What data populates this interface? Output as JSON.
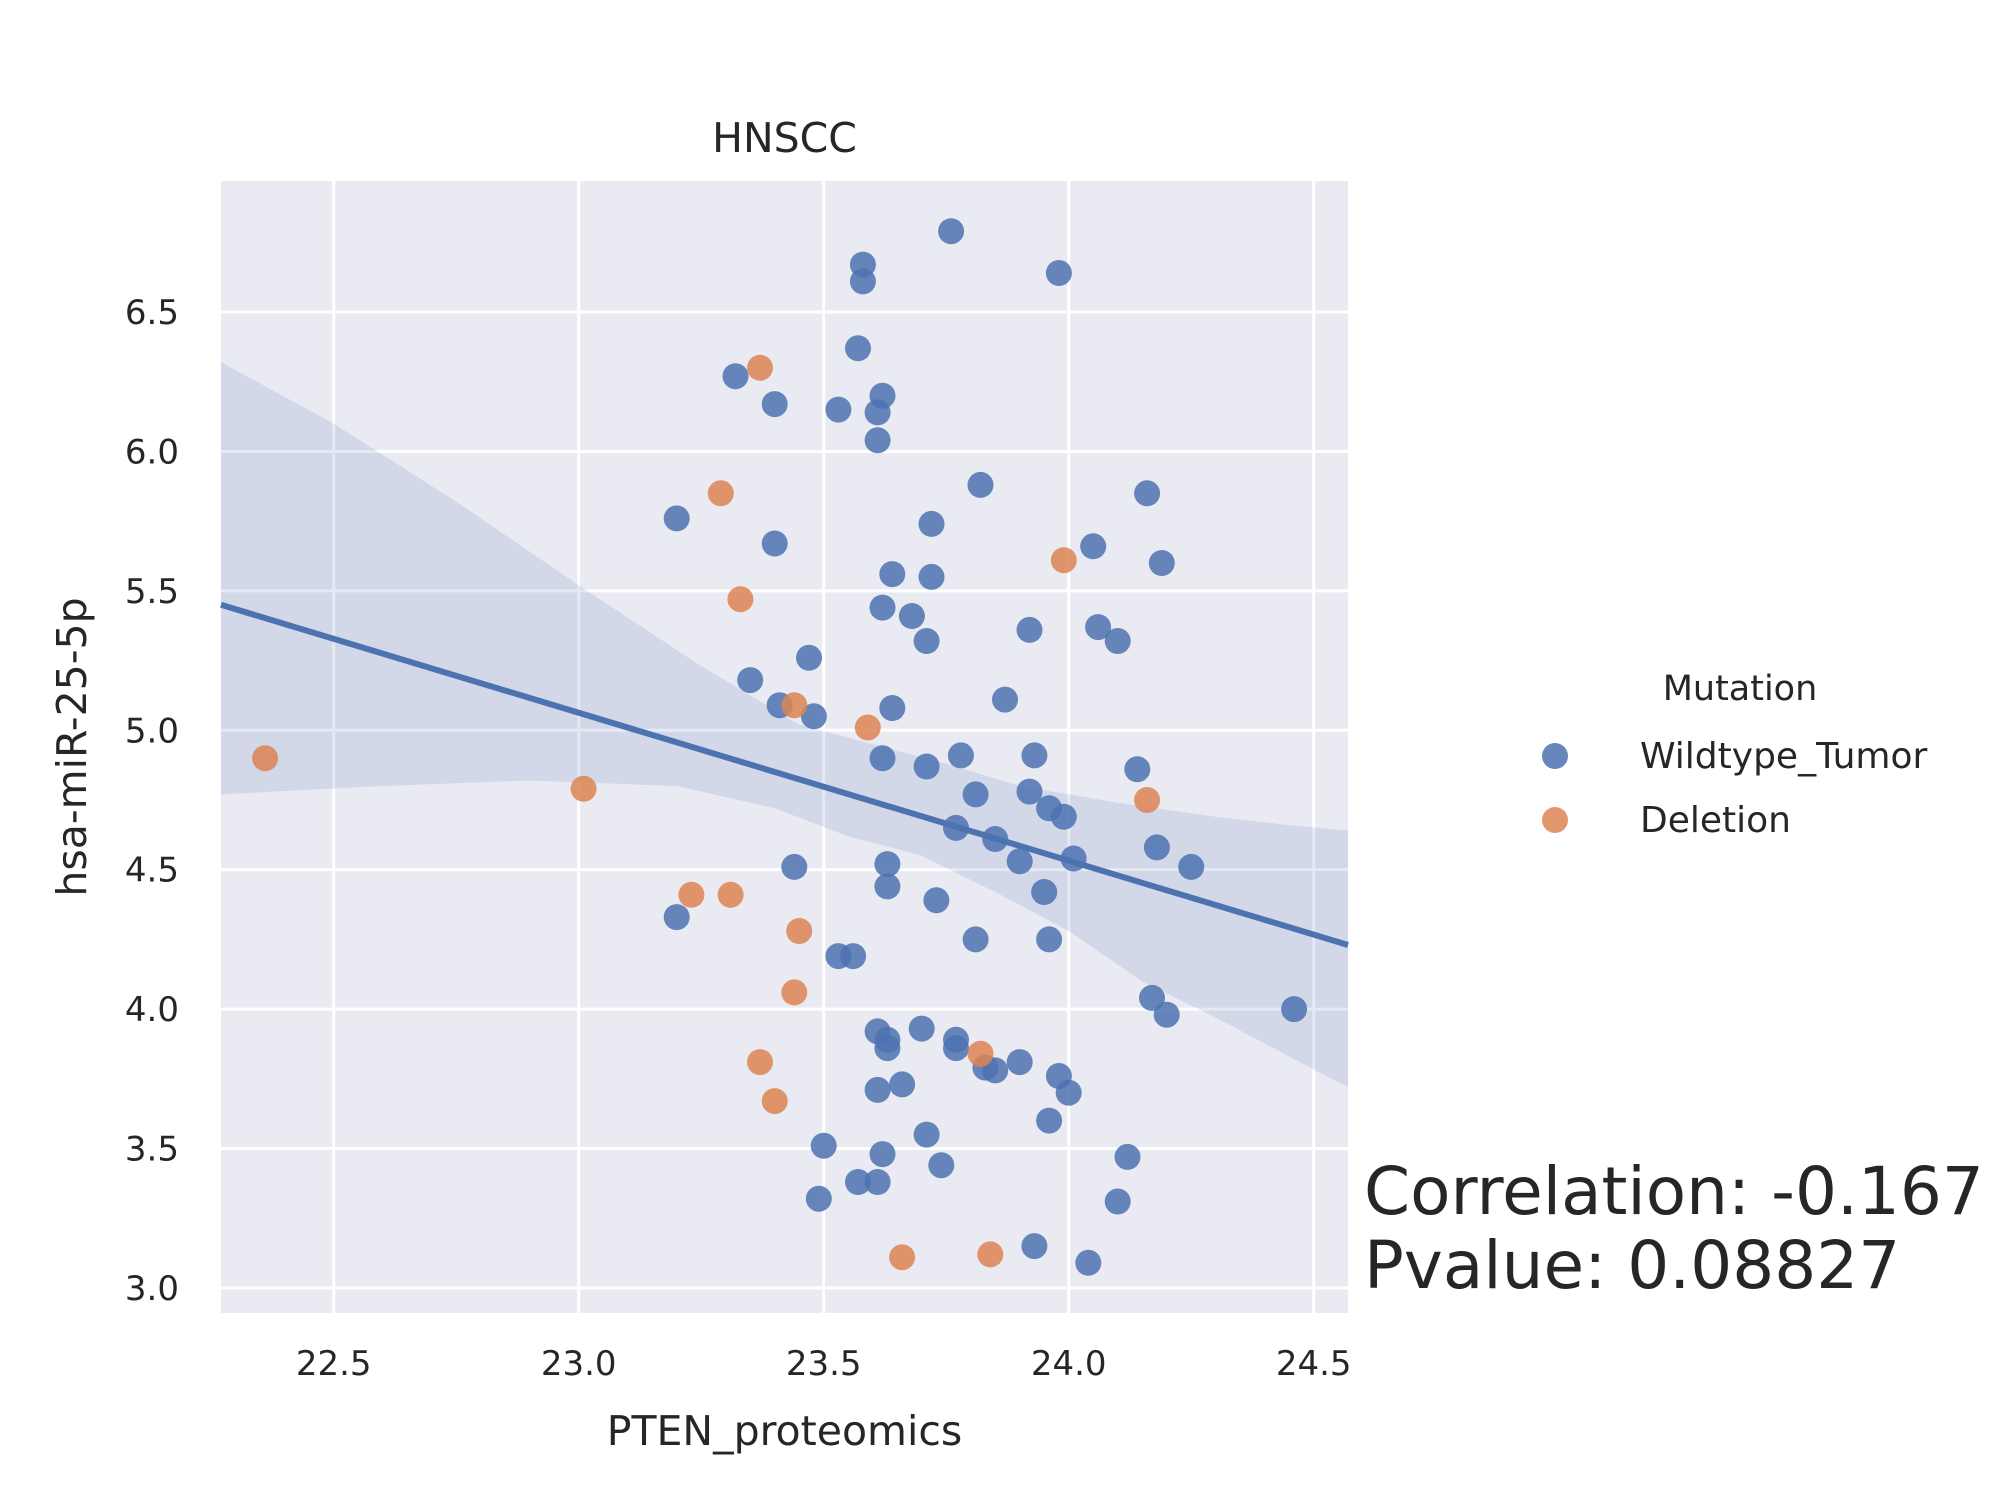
{
  "chart_data": {
    "type": "scatter",
    "title": "HNSCC",
    "xlabel": "PTEN_proteomics",
    "ylabel": "hsa-miR-25-5p",
    "xlim": [
      22.27,
      24.57
    ],
    "ylim": [
      2.91,
      6.97
    ],
    "xticks": [
      "22.5",
      "23.0",
      "23.5",
      "24.0",
      "24.5"
    ],
    "yticks": [
      "3.0",
      "3.5",
      "4.0",
      "4.5",
      "5.0",
      "5.5",
      "6.0",
      "6.5"
    ],
    "grid": true,
    "legend": {
      "title": "Mutation",
      "position": "right"
    },
    "series": [
      {
        "name": "Wildtype_Tumor",
        "color": "#4c72b0",
        "points": [
          [
            23.76,
            6.79
          ],
          [
            23.58,
            6.67
          ],
          [
            23.58,
            6.61
          ],
          [
            23.98,
            6.64
          ],
          [
            23.57,
            6.37
          ],
          [
            23.32,
            6.27
          ],
          [
            23.62,
            6.2
          ],
          [
            23.4,
            6.17
          ],
          [
            23.53,
            6.15
          ],
          [
            23.61,
            6.14
          ],
          [
            23.61,
            6.04
          ],
          [
            23.82,
            5.88
          ],
          [
            24.16,
            5.85
          ],
          [
            23.2,
            5.76
          ],
          [
            23.72,
            5.74
          ],
          [
            23.4,
            5.67
          ],
          [
            24.05,
            5.66
          ],
          [
            24.19,
            5.6
          ],
          [
            23.64,
            5.56
          ],
          [
            23.72,
            5.55
          ],
          [
            23.62,
            5.44
          ],
          [
            23.68,
            5.41
          ],
          [
            23.92,
            5.36
          ],
          [
            24.06,
            5.37
          ],
          [
            23.71,
            5.32
          ],
          [
            24.1,
            5.32
          ],
          [
            23.47,
            5.26
          ],
          [
            23.35,
            5.18
          ],
          [
            23.87,
            5.11
          ],
          [
            23.41,
            5.09
          ],
          [
            23.48,
            5.05
          ],
          [
            23.64,
            5.08
          ],
          [
            23.78,
            4.91
          ],
          [
            23.93,
            4.91
          ],
          [
            23.62,
            4.9
          ],
          [
            23.71,
            4.87
          ],
          [
            24.14,
            4.86
          ],
          [
            23.81,
            4.77
          ],
          [
            23.92,
            4.78
          ],
          [
            23.96,
            4.72
          ],
          [
            23.99,
            4.69
          ],
          [
            23.77,
            4.65
          ],
          [
            23.85,
            4.61
          ],
          [
            24.18,
            4.58
          ],
          [
            24.01,
            4.54
          ],
          [
            23.9,
            4.53
          ],
          [
            23.63,
            4.52
          ],
          [
            24.25,
            4.51
          ],
          [
            23.44,
            4.51
          ],
          [
            23.63,
            4.44
          ],
          [
            23.95,
            4.42
          ],
          [
            23.73,
            4.39
          ],
          [
            23.2,
            4.33
          ],
          [
            23.81,
            4.25
          ],
          [
            23.96,
            4.25
          ],
          [
            23.53,
            4.19
          ],
          [
            23.56,
            4.19
          ],
          [
            24.46,
            4.0
          ],
          [
            24.17,
            4.04
          ],
          [
            24.2,
            3.98
          ],
          [
            23.61,
            3.92
          ],
          [
            23.7,
            3.93
          ],
          [
            23.63,
            3.89
          ],
          [
            23.77,
            3.89
          ],
          [
            23.63,
            3.86
          ],
          [
            23.77,
            3.86
          ],
          [
            23.83,
            3.79
          ],
          [
            23.85,
            3.78
          ],
          [
            23.9,
            3.81
          ],
          [
            23.98,
            3.76
          ],
          [
            23.66,
            3.73
          ],
          [
            23.61,
            3.71
          ],
          [
            24.0,
            3.7
          ],
          [
            23.96,
            3.6
          ],
          [
            23.71,
            3.55
          ],
          [
            23.5,
            3.51
          ],
          [
            23.62,
            3.48
          ],
          [
            24.12,
            3.47
          ],
          [
            23.74,
            3.44
          ],
          [
            23.57,
            3.38
          ],
          [
            23.61,
            3.38
          ],
          [
            23.49,
            3.32
          ],
          [
            24.1,
            3.31
          ],
          [
            23.93,
            3.15
          ],
          [
            24.04,
            3.09
          ]
        ]
      },
      {
        "name": "Deletion",
        "color": "#dd8452",
        "points": [
          [
            23.37,
            6.3
          ],
          [
            23.29,
            5.85
          ],
          [
            23.99,
            5.61
          ],
          [
            23.33,
            5.47
          ],
          [
            23.44,
            5.09
          ],
          [
            23.59,
            5.01
          ],
          [
            22.36,
            4.9
          ],
          [
            23.01,
            4.79
          ],
          [
            24.16,
            4.75
          ],
          [
            23.23,
            4.41
          ],
          [
            23.31,
            4.41
          ],
          [
            23.45,
            4.28
          ],
          [
            23.44,
            4.06
          ],
          [
            23.82,
            3.84
          ],
          [
            23.37,
            3.81
          ],
          [
            23.4,
            3.67
          ],
          [
            23.66,
            3.11
          ],
          [
            23.84,
            3.12
          ]
        ]
      }
    ],
    "regression": {
      "x": [
        22.27,
        24.57
      ],
      "y": [
        5.45,
        4.23
      ],
      "ci_lower": [
        [
          22.27,
          4.77
        ],
        [
          22.6,
          4.8
        ],
        [
          22.9,
          4.82
        ],
        [
          23.2,
          4.8
        ],
        [
          23.4,
          4.72
        ],
        [
          23.55,
          4.62
        ],
        [
          23.7,
          4.55
        ],
        [
          23.85,
          4.42
        ],
        [
          24.0,
          4.28
        ],
        [
          24.15,
          4.1
        ],
        [
          24.3,
          3.97
        ],
        [
          24.45,
          3.83
        ],
        [
          24.57,
          3.72
        ]
      ],
      "ci_upper": [
        [
          22.27,
          6.32
        ],
        [
          22.5,
          6.1
        ],
        [
          22.75,
          5.82
        ],
        [
          23.0,
          5.52
        ],
        [
          23.25,
          5.23
        ],
        [
          23.45,
          5.02
        ],
        [
          23.6,
          4.95
        ],
        [
          23.75,
          4.88
        ],
        [
          23.9,
          4.8
        ],
        [
          24.1,
          4.74
        ],
        [
          24.3,
          4.69
        ],
        [
          24.45,
          4.66
        ],
        [
          24.57,
          4.64
        ]
      ]
    },
    "annotation": {
      "correlation": "Correlation: -0.167",
      "pvalue": "Pvalue: 0.08827"
    }
  }
}
